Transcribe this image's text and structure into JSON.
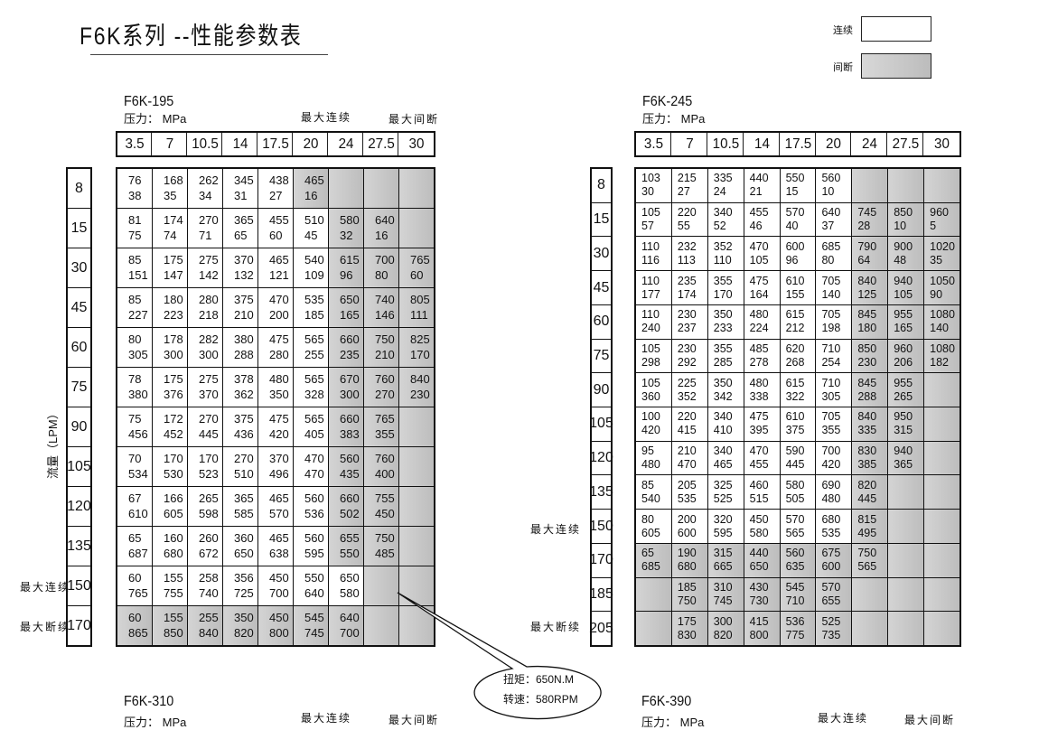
{
  "title": "F6K系列 --性能参数表",
  "legend": {
    "continuous": "连续",
    "intermittent": "间断",
    "continuous_color": "#ffffff",
    "intermittent_color": "#c4c4c4"
  },
  "y_axis_label": "流量（LPM）",
  "max_continuous": "最大连续",
  "max_intermittent": "最大间断",
  "max_intermittent_row": "最大断续",
  "pressure_label": "压力： MPa",
  "pressures": [
    "3.5",
    "7",
    "10.5",
    "14",
    "17.5",
    "20",
    "24",
    "27.5",
    "30"
  ],
  "callout": {
    "torque": "扭矩：650N.M",
    "speed": "转速：580RPM"
  },
  "tables": [
    {
      "model": "F6K-195",
      "flows": [
        "8",
        "15",
        "30",
        "45",
        "60",
        "75",
        "90",
        "105",
        "120",
        "135",
        "150",
        "170"
      ],
      "rows": [
        {
          "shade_from": 5,
          "cells": [
            [
              "76",
              "38"
            ],
            [
              "168",
              "35"
            ],
            [
              "262",
              "34"
            ],
            [
              "345",
              "31"
            ],
            [
              "438",
              "27"
            ],
            [
              "465",
              "16"
            ],
            [],
            [],
            []
          ]
        },
        {
          "shade_from": 6,
          "cells": [
            [
              "81",
              "75"
            ],
            [
              "174",
              "74"
            ],
            [
              "270",
              "71"
            ],
            [
              "365",
              "65"
            ],
            [
              "455",
              "60"
            ],
            [
              "510",
              "45"
            ],
            [
              "580",
              "32"
            ],
            [
              "640",
              "16"
            ],
            []
          ]
        },
        {
          "shade_from": 6,
          "cells": [
            [
              "85",
              "151"
            ],
            [
              "175",
              "147"
            ],
            [
              "275",
              "142"
            ],
            [
              "370",
              "132"
            ],
            [
              "465",
              "121"
            ],
            [
              "540",
              "109"
            ],
            [
              "615",
              "96"
            ],
            [
              "700",
              "80"
            ],
            [
              "765",
              "60"
            ]
          ]
        },
        {
          "shade_from": 6,
          "cells": [
            [
              "85",
              "227"
            ],
            [
              "180",
              "223"
            ],
            [
              "280",
              "218"
            ],
            [
              "375",
              "210"
            ],
            [
              "470",
              "200"
            ],
            [
              "535",
              "185"
            ],
            [
              "650",
              "165"
            ],
            [
              "740",
              "146"
            ],
            [
              "805",
              "111"
            ]
          ]
        },
        {
          "shade_from": 6,
          "cells": [
            [
              "80",
              "305"
            ],
            [
              "178",
              "300"
            ],
            [
              "282",
              "300"
            ],
            [
              "380",
              "288"
            ],
            [
              "475",
              "280"
            ],
            [
              "565",
              "255"
            ],
            [
              "660",
              "235"
            ],
            [
              "750",
              "210"
            ],
            [
              "825",
              "170"
            ]
          ]
        },
        {
          "shade_from": 6,
          "cells": [
            [
              "78",
              "380"
            ],
            [
              "175",
              "376"
            ],
            [
              "275",
              "370"
            ],
            [
              "378",
              "362"
            ],
            [
              "480",
              "350"
            ],
            [
              "565",
              "328"
            ],
            [
              "670",
              "300"
            ],
            [
              "760",
              "270"
            ],
            [
              "840",
              "230"
            ]
          ]
        },
        {
          "shade_from": 6,
          "cells": [
            [
              "75",
              "456"
            ],
            [
              "172",
              "452"
            ],
            [
              "270",
              "445"
            ],
            [
              "375",
              "436"
            ],
            [
              "475",
              "420"
            ],
            [
              "565",
              "405"
            ],
            [
              "660",
              "383"
            ],
            [
              "765",
              "355"
            ],
            []
          ]
        },
        {
          "shade_from": 6,
          "cells": [
            [
              "70",
              "534"
            ],
            [
              "170",
              "530"
            ],
            [
              "170",
              "523"
            ],
            [
              "270",
              "510"
            ],
            [
              "370",
              "496"
            ],
            [
              "470",
              "470"
            ],
            [
              "560",
              "435"
            ],
            [
              "760",
              "400"
            ],
            []
          ]
        },
        {
          "shade_from": 6,
          "cells": [
            [
              "67",
              "610"
            ],
            [
              "166",
              "605"
            ],
            [
              "265",
              "598"
            ],
            [
              "365",
              "585"
            ],
            [
              "465",
              "570"
            ],
            [
              "560",
              "536"
            ],
            [
              "660",
              "502"
            ],
            [
              "755",
              "450"
            ],
            []
          ]
        },
        {
          "shade_from": 6,
          "cells": [
            [
              "65",
              "687"
            ],
            [
              "160",
              "680"
            ],
            [
              "260",
              "672"
            ],
            [
              "360",
              "650"
            ],
            [
              "465",
              "638"
            ],
            [
              "560",
              "595"
            ],
            [
              "655",
              "550"
            ],
            [
              "750",
              "485"
            ],
            []
          ]
        },
        {
          "shade_from": 7,
          "cells": [
            [
              "60",
              "765"
            ],
            [
              "155",
              "755"
            ],
            [
              "258",
              "740"
            ],
            [
              "356",
              "725"
            ],
            [
              "450",
              "700"
            ],
            [
              "550",
              "640"
            ],
            [
              "650",
              "580"
            ],
            [],
            []
          ]
        },
        {
          "shade_from": 0,
          "cells": [
            [
              "60",
              "865"
            ],
            [
              "155",
              "850"
            ],
            [
              "255",
              "840"
            ],
            [
              "350",
              "820"
            ],
            [
              "450",
              "800"
            ],
            [
              "545",
              "745"
            ],
            [
              "640",
              "700"
            ],
            [],
            []
          ]
        }
      ]
    },
    {
      "model": "F6K-245",
      "flows": [
        "8",
        "15",
        "30",
        "45",
        "60",
        "75",
        "90",
        "105",
        "120",
        "135",
        "150",
        "170",
        "185",
        "205"
      ],
      "rows": [
        {
          "shade_from": 6,
          "cells": [
            [
              "103",
              "30"
            ],
            [
              "215",
              "27"
            ],
            [
              "335",
              "24"
            ],
            [
              "440",
              "21"
            ],
            [
              "550",
              "15"
            ],
            [
              "560",
              "10"
            ],
            [],
            [],
            []
          ]
        },
        {
          "shade_from": 6,
          "cells": [
            [
              "105",
              "57"
            ],
            [
              "220",
              "55"
            ],
            [
              "340",
              "52"
            ],
            [
              "455",
              "46"
            ],
            [
              "570",
              "40"
            ],
            [
              "640",
              "37"
            ],
            [
              "745",
              "28"
            ],
            [
              "850",
              "10"
            ],
            [
              "960",
              "5"
            ]
          ]
        },
        {
          "shade_from": 6,
          "cells": [
            [
              "110",
              "116"
            ],
            [
              "232",
              "113"
            ],
            [
              "352",
              "110"
            ],
            [
              "470",
              "105"
            ],
            [
              "600",
              "96"
            ],
            [
              "685",
              "80"
            ],
            [
              "790",
              "64"
            ],
            [
              "900",
              "48"
            ],
            [
              "1020",
              "35"
            ]
          ]
        },
        {
          "shade_from": 6,
          "cells": [
            [
              "110",
              "177"
            ],
            [
              "235",
              "174"
            ],
            [
              "355",
              "170"
            ],
            [
              "475",
              "164"
            ],
            [
              "610",
              "155"
            ],
            [
              "705",
              "140"
            ],
            [
              "840",
              "125"
            ],
            [
              "940",
              "105"
            ],
            [
              "1050",
              "90"
            ]
          ]
        },
        {
          "shade_from": 6,
          "cells": [
            [
              "110",
              "240"
            ],
            [
              "230",
              "237"
            ],
            [
              "350",
              "233"
            ],
            [
              "480",
              "224"
            ],
            [
              "615",
              "212"
            ],
            [
              "705",
              "198"
            ],
            [
              "845",
              "180"
            ],
            [
              "955",
              "165"
            ],
            [
              "1080",
              "140"
            ]
          ]
        },
        {
          "shade_from": 6,
          "cells": [
            [
              "105",
              "298"
            ],
            [
              "230",
              "292"
            ],
            [
              "355",
              "285"
            ],
            [
              "485",
              "278"
            ],
            [
              "620",
              "268"
            ],
            [
              "710",
              "254"
            ],
            [
              "850",
              "230"
            ],
            [
              "960",
              "206"
            ],
            [
              "1080",
              "182"
            ]
          ]
        },
        {
          "shade_from": 6,
          "cells": [
            [
              "105",
              "360"
            ],
            [
              "225",
              "352"
            ],
            [
              "350",
              "342"
            ],
            [
              "480",
              "338"
            ],
            [
              "615",
              "322"
            ],
            [
              "710",
              "305"
            ],
            [
              "845",
              "288"
            ],
            [
              "955",
              "265"
            ],
            []
          ]
        },
        {
          "shade_from": 6,
          "cells": [
            [
              "100",
              "420"
            ],
            [
              "220",
              "415"
            ],
            [
              "340",
              "410"
            ],
            [
              "475",
              "395"
            ],
            [
              "610",
              "375"
            ],
            [
              "705",
              "355"
            ],
            [
              "840",
              "335"
            ],
            [
              "950",
              "315"
            ],
            []
          ]
        },
        {
          "shade_from": 6,
          "cells": [
            [
              "95",
              "480"
            ],
            [
              "210",
              "470"
            ],
            [
              "340",
              "465"
            ],
            [
              "470",
              "455"
            ],
            [
              "590",
              "445"
            ],
            [
              "700",
              "420"
            ],
            [
              "830",
              "385"
            ],
            [
              "940",
              "365"
            ],
            []
          ]
        },
        {
          "shade_from": 6,
          "cells": [
            [
              "85",
              "540"
            ],
            [
              "205",
              "535"
            ],
            [
              "325",
              "525"
            ],
            [
              "460",
              "515"
            ],
            [
              "580",
              "505"
            ],
            [
              "690",
              "480"
            ],
            [
              "820",
              "445"
            ],
            [],
            []
          ]
        },
        {
          "shade_from": 6,
          "cells": [
            [
              "80",
              "605"
            ],
            [
              "200",
              "600"
            ],
            [
              "320",
              "595"
            ],
            [
              "450",
              "580"
            ],
            [
              "570",
              "565"
            ],
            [
              "680",
              "535"
            ],
            [
              "815",
              "495"
            ],
            [],
            []
          ]
        },
        {
          "shade_from": 0,
          "cells": [
            [
              "65",
              "685"
            ],
            [
              "190",
              "680"
            ],
            [
              "315",
              "665"
            ],
            [
              "440",
              "650"
            ],
            [
              "560",
              "635"
            ],
            [
              "675",
              "600"
            ],
            [
              "750",
              "565"
            ],
            [],
            []
          ]
        },
        {
          "shade_from": 0,
          "cells": [
            [],
            [
              "185",
              "750"
            ],
            [
              "310",
              "745"
            ],
            [
              "430",
              "730"
            ],
            [
              "545",
              "710"
            ],
            [
              "570",
              "655"
            ],
            [],
            [],
            []
          ]
        },
        {
          "shade_from": 0,
          "cells": [
            [],
            [
              "175",
              "830"
            ],
            [
              "300",
              "820"
            ],
            [
              "415",
              "800"
            ],
            [
              "536",
              "775"
            ],
            [
              "525",
              "735"
            ],
            [],
            [],
            []
          ]
        }
      ]
    },
    {
      "model": "F6K-310"
    },
    {
      "model": "F6K-390"
    }
  ]
}
